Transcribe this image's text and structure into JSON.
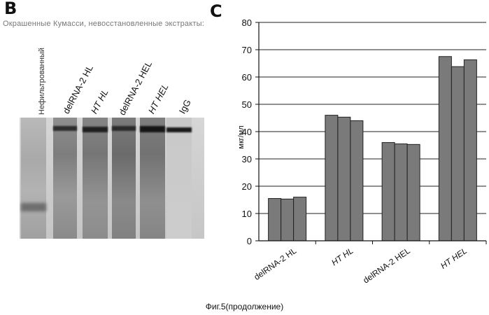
{
  "panels": {
    "b_letter": "B",
    "c_letter": "C"
  },
  "gel": {
    "title": "Окрашенные Кумасси, невосстановленные экстракты:",
    "lanes": [
      "Нефильтрованный",
      "delRNA-2 HL",
      "HT HL",
      "delRNA-2 HEL",
      "HT HEL",
      "IgG"
    ]
  },
  "chart_data": {
    "type": "bar",
    "categories": [
      "delRNA-2 HL",
      "HT HL",
      "delRNA-2 HEL",
      "HT HEL"
    ],
    "series": [
      {
        "values": [
          15.5,
          46,
          36,
          67.5
        ]
      },
      {
        "values": [
          15.3,
          45.3,
          35.5,
          63.8
        ]
      },
      {
        "values": [
          16,
          44,
          35.3,
          66.3
        ]
      }
    ],
    "ylabel": "мкг/мл",
    "ylim": [
      0,
      80
    ],
    "yticks": [
      0,
      10,
      20,
      30,
      40,
      50,
      60,
      70,
      80
    ],
    "grid": true,
    "bar_color": "#7a7a7a"
  },
  "caption": "Фиг.5(продолжение)"
}
